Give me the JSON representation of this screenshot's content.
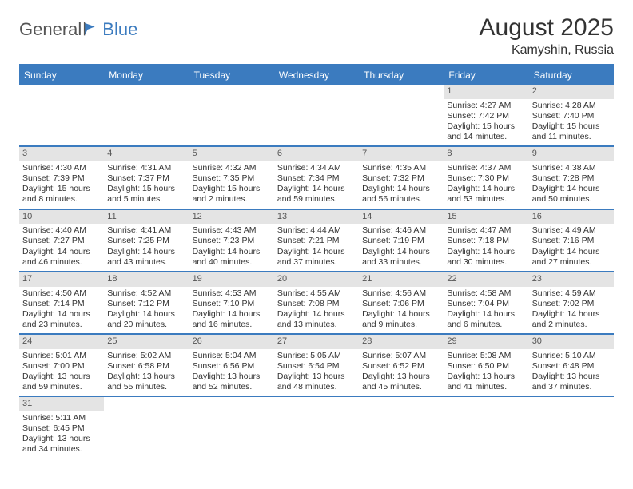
{
  "logo": {
    "text1": "General",
    "text2": "Blue"
  },
  "title": "August 2025",
  "location": "Kamyshin, Russia",
  "colors": {
    "header_bg": "#3b7bbf",
    "daynum_bg": "#e4e4e4",
    "text": "#333333",
    "divider": "#3b7bbf"
  },
  "day_headers": [
    "Sunday",
    "Monday",
    "Tuesday",
    "Wednesday",
    "Thursday",
    "Friday",
    "Saturday"
  ],
  "weeks": [
    [
      {
        "empty": true
      },
      {
        "empty": true
      },
      {
        "empty": true
      },
      {
        "empty": true
      },
      {
        "empty": true
      },
      {
        "day": "1",
        "sunrise": "Sunrise: 4:27 AM",
        "sunset": "Sunset: 7:42 PM",
        "daylight1": "Daylight: 15 hours",
        "daylight2": "and 14 minutes."
      },
      {
        "day": "2",
        "sunrise": "Sunrise: 4:28 AM",
        "sunset": "Sunset: 7:40 PM",
        "daylight1": "Daylight: 15 hours",
        "daylight2": "and 11 minutes."
      }
    ],
    [
      {
        "day": "3",
        "sunrise": "Sunrise: 4:30 AM",
        "sunset": "Sunset: 7:39 PM",
        "daylight1": "Daylight: 15 hours",
        "daylight2": "and 8 minutes."
      },
      {
        "day": "4",
        "sunrise": "Sunrise: 4:31 AM",
        "sunset": "Sunset: 7:37 PM",
        "daylight1": "Daylight: 15 hours",
        "daylight2": "and 5 minutes."
      },
      {
        "day": "5",
        "sunrise": "Sunrise: 4:32 AM",
        "sunset": "Sunset: 7:35 PM",
        "daylight1": "Daylight: 15 hours",
        "daylight2": "and 2 minutes."
      },
      {
        "day": "6",
        "sunrise": "Sunrise: 4:34 AM",
        "sunset": "Sunset: 7:34 PM",
        "daylight1": "Daylight: 14 hours",
        "daylight2": "and 59 minutes."
      },
      {
        "day": "7",
        "sunrise": "Sunrise: 4:35 AM",
        "sunset": "Sunset: 7:32 PM",
        "daylight1": "Daylight: 14 hours",
        "daylight2": "and 56 minutes."
      },
      {
        "day": "8",
        "sunrise": "Sunrise: 4:37 AM",
        "sunset": "Sunset: 7:30 PM",
        "daylight1": "Daylight: 14 hours",
        "daylight2": "and 53 minutes."
      },
      {
        "day": "9",
        "sunrise": "Sunrise: 4:38 AM",
        "sunset": "Sunset: 7:28 PM",
        "daylight1": "Daylight: 14 hours",
        "daylight2": "and 50 minutes."
      }
    ],
    [
      {
        "day": "10",
        "sunrise": "Sunrise: 4:40 AM",
        "sunset": "Sunset: 7:27 PM",
        "daylight1": "Daylight: 14 hours",
        "daylight2": "and 46 minutes."
      },
      {
        "day": "11",
        "sunrise": "Sunrise: 4:41 AM",
        "sunset": "Sunset: 7:25 PM",
        "daylight1": "Daylight: 14 hours",
        "daylight2": "and 43 minutes."
      },
      {
        "day": "12",
        "sunrise": "Sunrise: 4:43 AM",
        "sunset": "Sunset: 7:23 PM",
        "daylight1": "Daylight: 14 hours",
        "daylight2": "and 40 minutes."
      },
      {
        "day": "13",
        "sunrise": "Sunrise: 4:44 AM",
        "sunset": "Sunset: 7:21 PM",
        "daylight1": "Daylight: 14 hours",
        "daylight2": "and 37 minutes."
      },
      {
        "day": "14",
        "sunrise": "Sunrise: 4:46 AM",
        "sunset": "Sunset: 7:19 PM",
        "daylight1": "Daylight: 14 hours",
        "daylight2": "and 33 minutes."
      },
      {
        "day": "15",
        "sunrise": "Sunrise: 4:47 AM",
        "sunset": "Sunset: 7:18 PM",
        "daylight1": "Daylight: 14 hours",
        "daylight2": "and 30 minutes."
      },
      {
        "day": "16",
        "sunrise": "Sunrise: 4:49 AM",
        "sunset": "Sunset: 7:16 PM",
        "daylight1": "Daylight: 14 hours",
        "daylight2": "and 27 minutes."
      }
    ],
    [
      {
        "day": "17",
        "sunrise": "Sunrise: 4:50 AM",
        "sunset": "Sunset: 7:14 PM",
        "daylight1": "Daylight: 14 hours",
        "daylight2": "and 23 minutes."
      },
      {
        "day": "18",
        "sunrise": "Sunrise: 4:52 AM",
        "sunset": "Sunset: 7:12 PM",
        "daylight1": "Daylight: 14 hours",
        "daylight2": "and 20 minutes."
      },
      {
        "day": "19",
        "sunrise": "Sunrise: 4:53 AM",
        "sunset": "Sunset: 7:10 PM",
        "daylight1": "Daylight: 14 hours",
        "daylight2": "and 16 minutes."
      },
      {
        "day": "20",
        "sunrise": "Sunrise: 4:55 AM",
        "sunset": "Sunset: 7:08 PM",
        "daylight1": "Daylight: 14 hours",
        "daylight2": "and 13 minutes."
      },
      {
        "day": "21",
        "sunrise": "Sunrise: 4:56 AM",
        "sunset": "Sunset: 7:06 PM",
        "daylight1": "Daylight: 14 hours",
        "daylight2": "and 9 minutes."
      },
      {
        "day": "22",
        "sunrise": "Sunrise: 4:58 AM",
        "sunset": "Sunset: 7:04 PM",
        "daylight1": "Daylight: 14 hours",
        "daylight2": "and 6 minutes."
      },
      {
        "day": "23",
        "sunrise": "Sunrise: 4:59 AM",
        "sunset": "Sunset: 7:02 PM",
        "daylight1": "Daylight: 14 hours",
        "daylight2": "and 2 minutes."
      }
    ],
    [
      {
        "day": "24",
        "sunrise": "Sunrise: 5:01 AM",
        "sunset": "Sunset: 7:00 PM",
        "daylight1": "Daylight: 13 hours",
        "daylight2": "and 59 minutes."
      },
      {
        "day": "25",
        "sunrise": "Sunrise: 5:02 AM",
        "sunset": "Sunset: 6:58 PM",
        "daylight1": "Daylight: 13 hours",
        "daylight2": "and 55 minutes."
      },
      {
        "day": "26",
        "sunrise": "Sunrise: 5:04 AM",
        "sunset": "Sunset: 6:56 PM",
        "daylight1": "Daylight: 13 hours",
        "daylight2": "and 52 minutes."
      },
      {
        "day": "27",
        "sunrise": "Sunrise: 5:05 AM",
        "sunset": "Sunset: 6:54 PM",
        "daylight1": "Daylight: 13 hours",
        "daylight2": "and 48 minutes."
      },
      {
        "day": "28",
        "sunrise": "Sunrise: 5:07 AM",
        "sunset": "Sunset: 6:52 PM",
        "daylight1": "Daylight: 13 hours",
        "daylight2": "and 45 minutes."
      },
      {
        "day": "29",
        "sunrise": "Sunrise: 5:08 AM",
        "sunset": "Sunset: 6:50 PM",
        "daylight1": "Daylight: 13 hours",
        "daylight2": "and 41 minutes."
      },
      {
        "day": "30",
        "sunrise": "Sunrise: 5:10 AM",
        "sunset": "Sunset: 6:48 PM",
        "daylight1": "Daylight: 13 hours",
        "daylight2": "and 37 minutes."
      }
    ],
    [
      {
        "day": "31",
        "sunrise": "Sunrise: 5:11 AM",
        "sunset": "Sunset: 6:45 PM",
        "daylight1": "Daylight: 13 hours",
        "daylight2": "and 34 minutes."
      },
      {
        "empty": true
      },
      {
        "empty": true
      },
      {
        "empty": true
      },
      {
        "empty": true
      },
      {
        "empty": true
      },
      {
        "empty": true
      }
    ]
  ]
}
